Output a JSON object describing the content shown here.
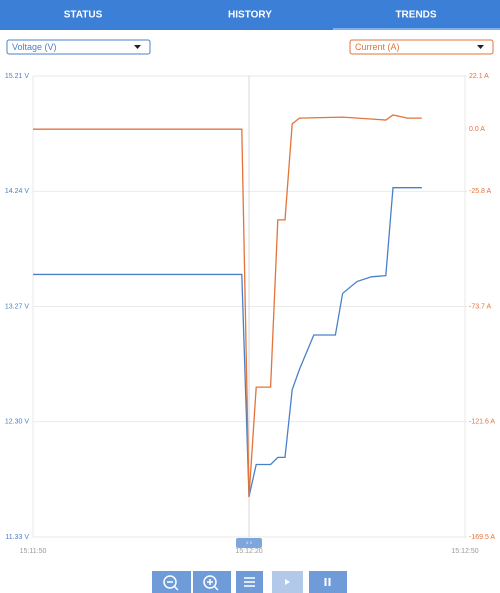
{
  "tabs": [
    "STATUS",
    "HISTORY",
    "TRENDS"
  ],
  "chart_data": {
    "type": "line",
    "xlim": [
      0,
      60
    ],
    "xticks": [
      {
        "value": 0,
        "label": "15:11:50"
      },
      {
        "value": 30,
        "label": "15:12:20"
      },
      {
        "value": 60,
        "label": "15:12:50"
      }
    ],
    "ylim": [
      11.33,
      15.21
    ],
    "yticks": [
      {
        "value": 11.33,
        "label": "11.33 V"
      },
      {
        "value": 12.3,
        "label": "12.30 V"
      },
      {
        "value": 13.27,
        "label": "13.27 V"
      },
      {
        "value": 14.24,
        "label": "14.24 V"
      },
      {
        "value": 15.21,
        "label": "15.21 V"
      }
    ],
    "y2lim": [
      -169.5,
      22.1
    ],
    "y2ticks": [
      {
        "value": -169.5,
        "label": "-169.5 A"
      },
      {
        "value": -121.6,
        "label": "-121.6 A"
      },
      {
        "value": -73.7,
        "label": "-73.7 A"
      },
      {
        "value": -25.8,
        "label": "-25.8 A"
      },
      {
        "value": 0,
        "label": "0.0 A"
      },
      {
        "value": 22.1,
        "label": "22.1 A"
      }
    ],
    "grid": true,
    "series": [
      {
        "name": "Voltage (V)",
        "color": "#4a80c9",
        "x": [
          0,
          29,
          30,
          31,
          33,
          34,
          35,
          36,
          37,
          39,
          42,
          43,
          45,
          47,
          49,
          50,
          54
        ],
        "values": [
          13.54,
          13.54,
          11.67,
          11.94,
          11.94,
          12.0,
          12.0,
          12.57,
          12.74,
          13.03,
          13.03,
          13.38,
          13.48,
          13.52,
          13.53,
          14.27,
          14.27
        ]
      },
      {
        "name": "Current (A)",
        "color": "#e2733a",
        "axis": "y2",
        "x": [
          0,
          29,
          30,
          31,
          33,
          34,
          35,
          36,
          37,
          43,
          49,
          50,
          52,
          54
        ],
        "values": [
          0,
          0,
          -152.9,
          -107.2,
          -107.2,
          -37.7,
          -37.7,
          2.2,
          4.6,
          5.0,
          3.8,
          5.9,
          4.6,
          4.6
        ]
      }
    ]
  }
}
